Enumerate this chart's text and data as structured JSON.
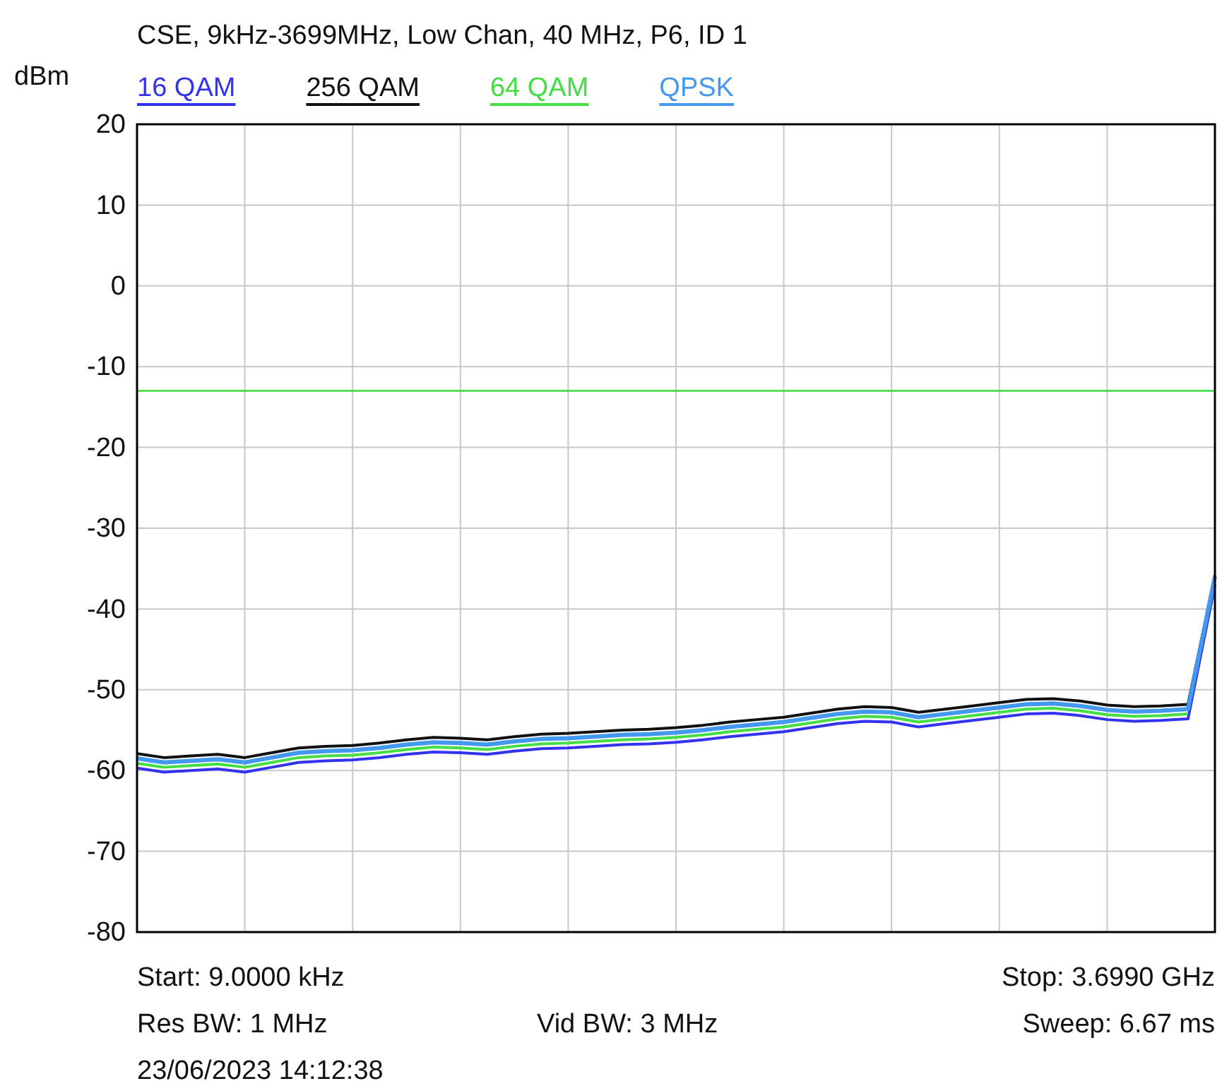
{
  "chart_data": {
    "type": "line",
    "title": "CSE, 9kHz-3699MHz, Low Chan, 40 MHz, P6, ID 1",
    "ylabel": "dBm",
    "categories": [
      null,
      null,
      null,
      null,
      null,
      null,
      null,
      null,
      null,
      null,
      null,
      null,
      null,
      null,
      null,
      null,
      null,
      null,
      null,
      null,
      null,
      null,
      null,
      null,
      null,
      null,
      null,
      null,
      null,
      null,
      null,
      null,
      null,
      null,
      null,
      null,
      null,
      null,
      null,
      null,
      null
    ],
    "series": [
      {
        "name": "16 QAM",
        "color": "#3333ee",
        "values": [
          -59.7,
          -60.2,
          -60,
          -59.8,
          -60.2,
          -59.6,
          -59,
          -58.8,
          -58.7,
          -58.4,
          -58,
          -57.7,
          -57.8,
          -58,
          -57.6,
          -57.3,
          -57.2,
          -57,
          -56.8,
          -56.7,
          -56.5,
          -56.2,
          -55.8,
          -55.5,
          -55.2,
          -54.7,
          -54.2,
          -53.9,
          -54,
          -54.6,
          -54.2,
          -53.8,
          -53.4,
          -53,
          -52.9,
          -53.2,
          -53.7,
          -53.9,
          -53.8,
          -53.6,
          -37
        ]
      },
      {
        "name": "256 QAM",
        "color": "#111111",
        "values": [
          -57.9,
          -58.4,
          -58.2,
          -58,
          -58.4,
          -57.8,
          -57.2,
          -57,
          -56.9,
          -56.6,
          -56.2,
          -55.9,
          -56,
          -56.2,
          -55.8,
          -55.5,
          -55.4,
          -55.2,
          -55,
          -54.9,
          -54.7,
          -54.4,
          -54,
          -53.7,
          -53.4,
          -52.9,
          -52.4,
          -52.1,
          -52.2,
          -52.8,
          -52.4,
          -52,
          -51.6,
          -51.2,
          -51.1,
          -51.4,
          -51.9,
          -52.1,
          -52,
          -51.8,
          -35.8
        ]
      },
      {
        "name": "64 QAM",
        "color": "#44dd44",
        "values": [
          -59.1,
          -59.6,
          -59.4,
          -59.2,
          -59.6,
          -59,
          -58.4,
          -58.2,
          -58.1,
          -57.8,
          -57.4,
          -57.1,
          -57.2,
          -57.4,
          -57,
          -56.7,
          -56.6,
          -56.4,
          -56.2,
          -56.1,
          -55.9,
          -55.6,
          -55.2,
          -54.9,
          -54.6,
          -54.1,
          -53.6,
          -53.3,
          -53.4,
          -54,
          -53.6,
          -53.2,
          -52.8,
          -52.4,
          -52.3,
          -52.6,
          -53.1,
          -53.3,
          -53.2,
          -53,
          null
        ]
      },
      {
        "name": "QPSK",
        "color": "#4499ee",
        "values": [
          -58.5,
          -59,
          -58.8,
          -58.6,
          -59,
          -58.4,
          -57.8,
          -57.6,
          -57.5,
          -57.2,
          -56.8,
          -56.5,
          -56.6,
          -56.8,
          -56.4,
          -56.1,
          -56,
          -55.8,
          -55.6,
          -55.5,
          -55.3,
          -55,
          -54.6,
          -54.3,
          -54,
          -53.5,
          -53,
          -52.7,
          -52.8,
          -53.4,
          -53,
          -52.6,
          -52.2,
          -51.8,
          -51.7,
          -52,
          -52.5,
          -52.7,
          -52.6,
          -52.4,
          -36
        ]
      }
    ],
    "ylim": [
      -80,
      20
    ],
    "yticks": [
      -80,
      -70,
      -60,
      -50,
      -40,
      -30,
      -20,
      -10,
      0,
      10,
      20
    ],
    "ref_lines": [
      {
        "axis": "y",
        "value": -13,
        "label": null,
        "color": "#33dd33"
      }
    ],
    "grid": true,
    "legend": "top",
    "tick_labels": "y",
    "annotations": [
      "Start: 9.0000 kHz",
      "Stop: 3.6990 GHz",
      "Res BW: 1 MHz",
      "Vid BW: 3 MHz",
      "Sweep: 6.67 ms",
      "23/06/2023 14:12:38"
    ]
  }
}
